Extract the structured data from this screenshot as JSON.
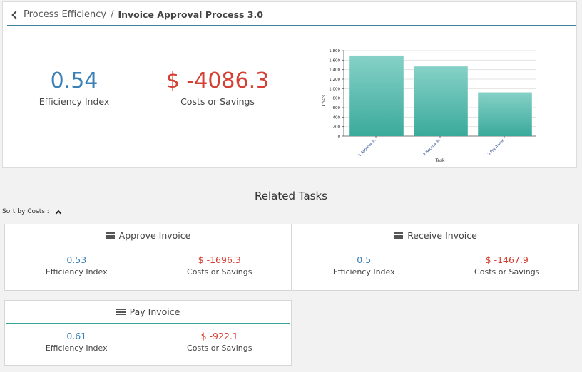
{
  "breadcrumb": {
    "parent": "Process Efficiency",
    "separator": "/",
    "current": "Invoice Approval Process 3.0"
  },
  "summary": {
    "efficiency_value": "0.54",
    "efficiency_label": "Efficiency Index",
    "cost_value": "$ -4086.3",
    "cost_label": "Costs or Savings"
  },
  "chart_data": {
    "type": "bar",
    "categories": [
      "1 Approve In",
      "2 Receive In",
      "3 Pay Invoic"
    ],
    "values": [
      1696.3,
      1467.9,
      922.1
    ],
    "xlabel": "Task",
    "ylabel": "Costs",
    "ylim": [
      0,
      1800
    ],
    "yticks": [
      "0",
      "200",
      "400",
      "600",
      "800",
      "1,000",
      "1,200",
      "1,400",
      "1,600",
      "1,800"
    ],
    "grid": true,
    "color": "#4fb7aa"
  },
  "section_title": "Related Tasks",
  "sort": {
    "label": "Sort by Costs :"
  },
  "tasks": [
    {
      "title": "Approve Invoice",
      "efficiency_value": "0.53",
      "efficiency_label": "Efficiency Index",
      "cost_value": "$ -1696.3",
      "cost_label": "Costs or Savings"
    },
    {
      "title": "Receive Invoice",
      "efficiency_value": "0.5",
      "efficiency_label": "Efficiency Index",
      "cost_value": "$ -1467.9",
      "cost_label": "Costs or Savings"
    },
    {
      "title": "Pay Invoice",
      "efficiency_value": "0.61",
      "efficiency_label": "Efficiency Index",
      "cost_value": "$ -922.1",
      "cost_label": "Costs or Savings"
    }
  ],
  "colors": {
    "efficiency": "#3a7fb5",
    "cost": "#d54034",
    "accent_rule": "#3aa59a"
  }
}
